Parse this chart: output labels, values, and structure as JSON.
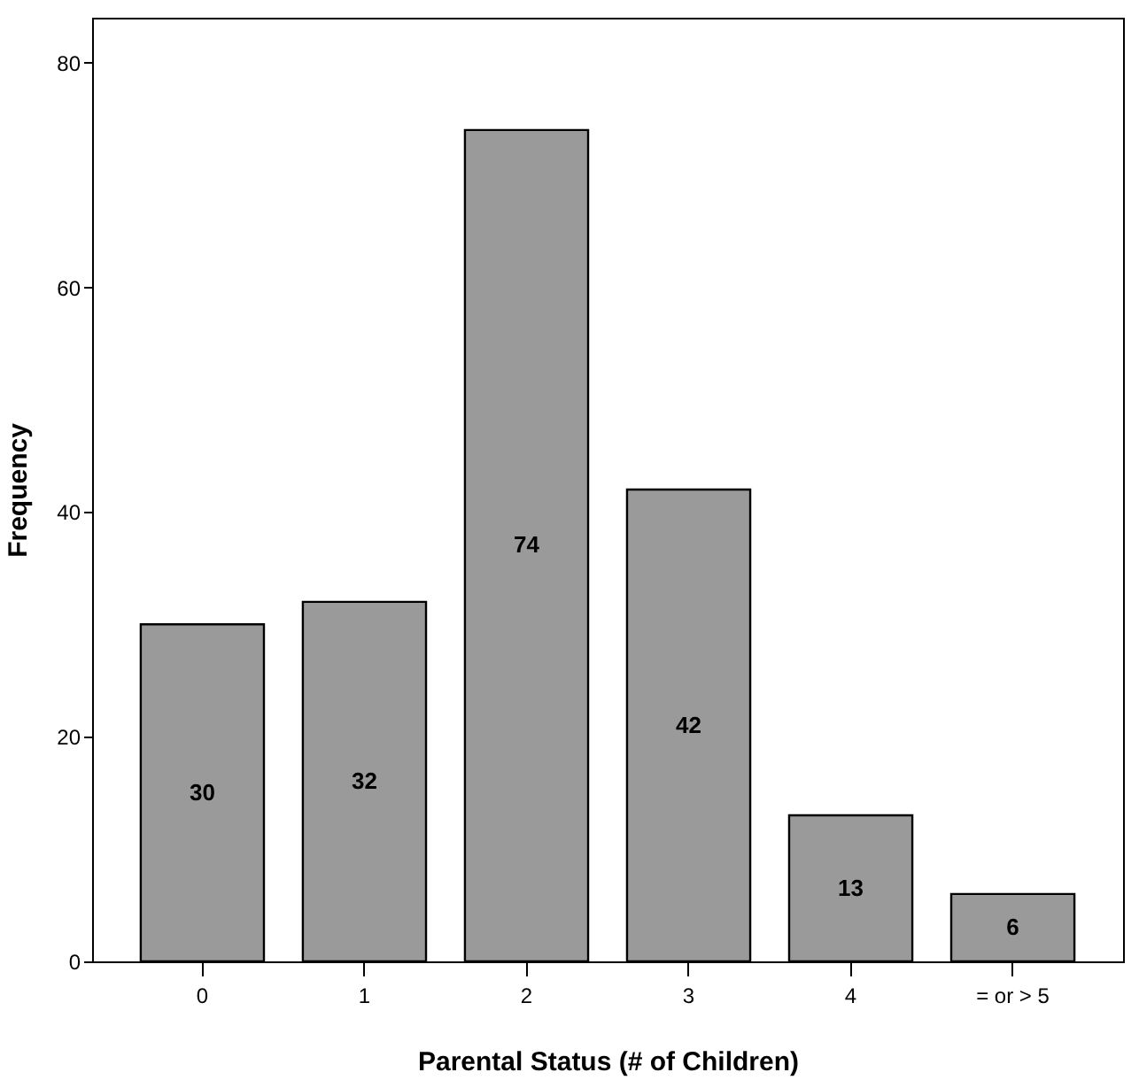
{
  "chart_data": {
    "type": "bar",
    "xlabel": "Parental Status (# of Children)",
    "ylabel": "Frequency",
    "categories": [
      "0",
      "1",
      "2",
      "3",
      "4",
      "= or > 5"
    ],
    "values": [
      30,
      32,
      74,
      42,
      13,
      6
    ],
    "color": "#9a9a9a",
    "ylim": [
      0,
      84
    ],
    "yticks": [
      0,
      20,
      40,
      60,
      80
    ],
    "grid": false,
    "data_labels": true
  }
}
